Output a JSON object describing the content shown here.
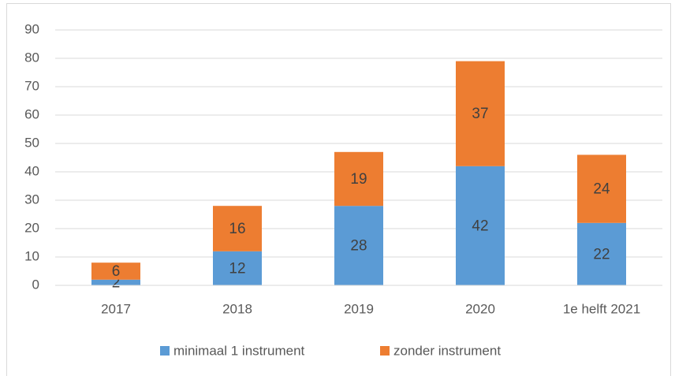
{
  "chart_data": {
    "type": "stacked_bar",
    "categories": [
      "2017",
      "2018",
      "2019",
      "2020",
      "1e helft 2021"
    ],
    "series": [
      {
        "name": "minimaal 1 instrument",
        "color": "#5b9bd5",
        "values": [
          2,
          12,
          28,
          42,
          22
        ]
      },
      {
        "name": "zonder instrument",
        "color": "#ed7d31",
        "values": [
          6,
          16,
          19,
          37,
          24
        ]
      }
    ],
    "ylim": [
      0,
      90
    ],
    "yticks": [
      0,
      10,
      20,
      30,
      40,
      50,
      60,
      70,
      80,
      90
    ],
    "grid": true,
    "legend": "bottom"
  }
}
